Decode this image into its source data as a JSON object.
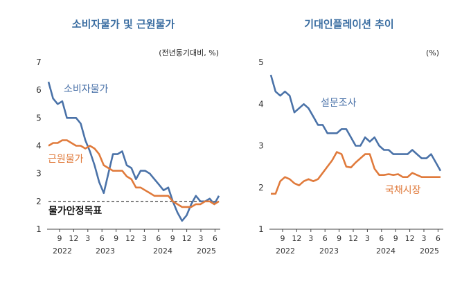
{
  "chart_data": [
    {
      "type": "line",
      "title": "소비자물가 및 근원물가",
      "unit": "(전년동기대비, %)",
      "ylim": [
        1,
        7
      ],
      "yticks": [
        "1",
        "2",
        "3",
        "4",
        "5",
        "6",
        "7"
      ],
      "xticks": [
        "9",
        "12",
        "3",
        "6",
        "9",
        "12",
        "3",
        "6",
        "9",
        "12",
        "3",
        "6"
      ],
      "years": [
        "2022",
        "2023",
        "2024",
        "2025"
      ],
      "series": [
        {
          "name": "소비자물가",
          "color": "#4a72a8",
          "values": [
            6.3,
            5.7,
            5.5,
            5.6,
            5.0,
            5.0,
            5.0,
            4.8,
            4.2,
            3.8,
            3.3,
            2.7,
            2.3,
            3.0,
            3.7,
            3.7,
            3.8,
            3.3,
            3.2,
            2.8,
            3.1,
            3.1,
            3.0,
            2.8,
            2.6,
            2.4,
            2.5,
            2.0,
            1.6,
            1.3,
            1.5,
            1.9,
            2.2,
            2.0,
            2.0,
            2.1,
            1.9,
            2.2
          ]
        },
        {
          "name": "근원물가",
          "color": "#e07a3b",
          "values": [
            4.0,
            4.1,
            4.1,
            4.2,
            4.2,
            4.1,
            4.0,
            4.0,
            3.9,
            4.0,
            3.9,
            3.7,
            3.3,
            3.2,
            3.1,
            3.1,
            3.1,
            2.9,
            2.8,
            2.5,
            2.5,
            2.4,
            2.3,
            2.2,
            2.2,
            2.2,
            2.2,
            2.0,
            1.9,
            1.8,
            1.8,
            1.8,
            1.9,
            1.9,
            2.0,
            2.0,
            1.9,
            2.0
          ]
        }
      ],
      "target": {
        "value": 2.0,
        "label": "물가안정목표"
      }
    },
    {
      "type": "line",
      "title": "기대인플레이션 추이",
      "unit": "(%)",
      "ylim": [
        1,
        5
      ],
      "yticks": [
        "1",
        "2",
        "3",
        "4",
        "5"
      ],
      "xticks": [
        "9",
        "12",
        "3",
        "6",
        "9",
        "12",
        "3",
        "6",
        "9",
        "12",
        "3",
        "6"
      ],
      "years": [
        "2022",
        "2023",
        "2024",
        "2025"
      ],
      "series": [
        {
          "name": "설문조사",
          "color": "#4a72a8",
          "values": [
            4.7,
            4.3,
            4.2,
            4.3,
            4.2,
            3.8,
            3.9,
            4.0,
            3.9,
            3.7,
            3.5,
            3.5,
            3.3,
            3.3,
            3.3,
            3.4,
            3.4,
            3.2,
            3.0,
            3.0,
            3.2,
            3.1,
            3.2,
            3.0,
            2.9,
            2.9,
            2.8,
            2.8,
            2.8,
            2.8,
            2.9,
            2.8,
            2.7,
            2.7,
            2.8,
            2.6,
            2.4
          ]
        },
        {
          "name": "국채시장",
          "color": "#e07a3b",
          "values": [
            1.85,
            1.85,
            2.15,
            2.25,
            2.2,
            2.1,
            2.05,
            2.15,
            2.2,
            2.15,
            2.2,
            2.35,
            2.5,
            2.65,
            2.85,
            2.8,
            2.5,
            2.48,
            2.6,
            2.7,
            2.8,
            2.8,
            2.45,
            2.3,
            2.3,
            2.32,
            2.3,
            2.32,
            2.25,
            2.25,
            2.35,
            2.3,
            2.25,
            2.25,
            2.25,
            2.25,
            2.25
          ]
        }
      ]
    }
  ]
}
